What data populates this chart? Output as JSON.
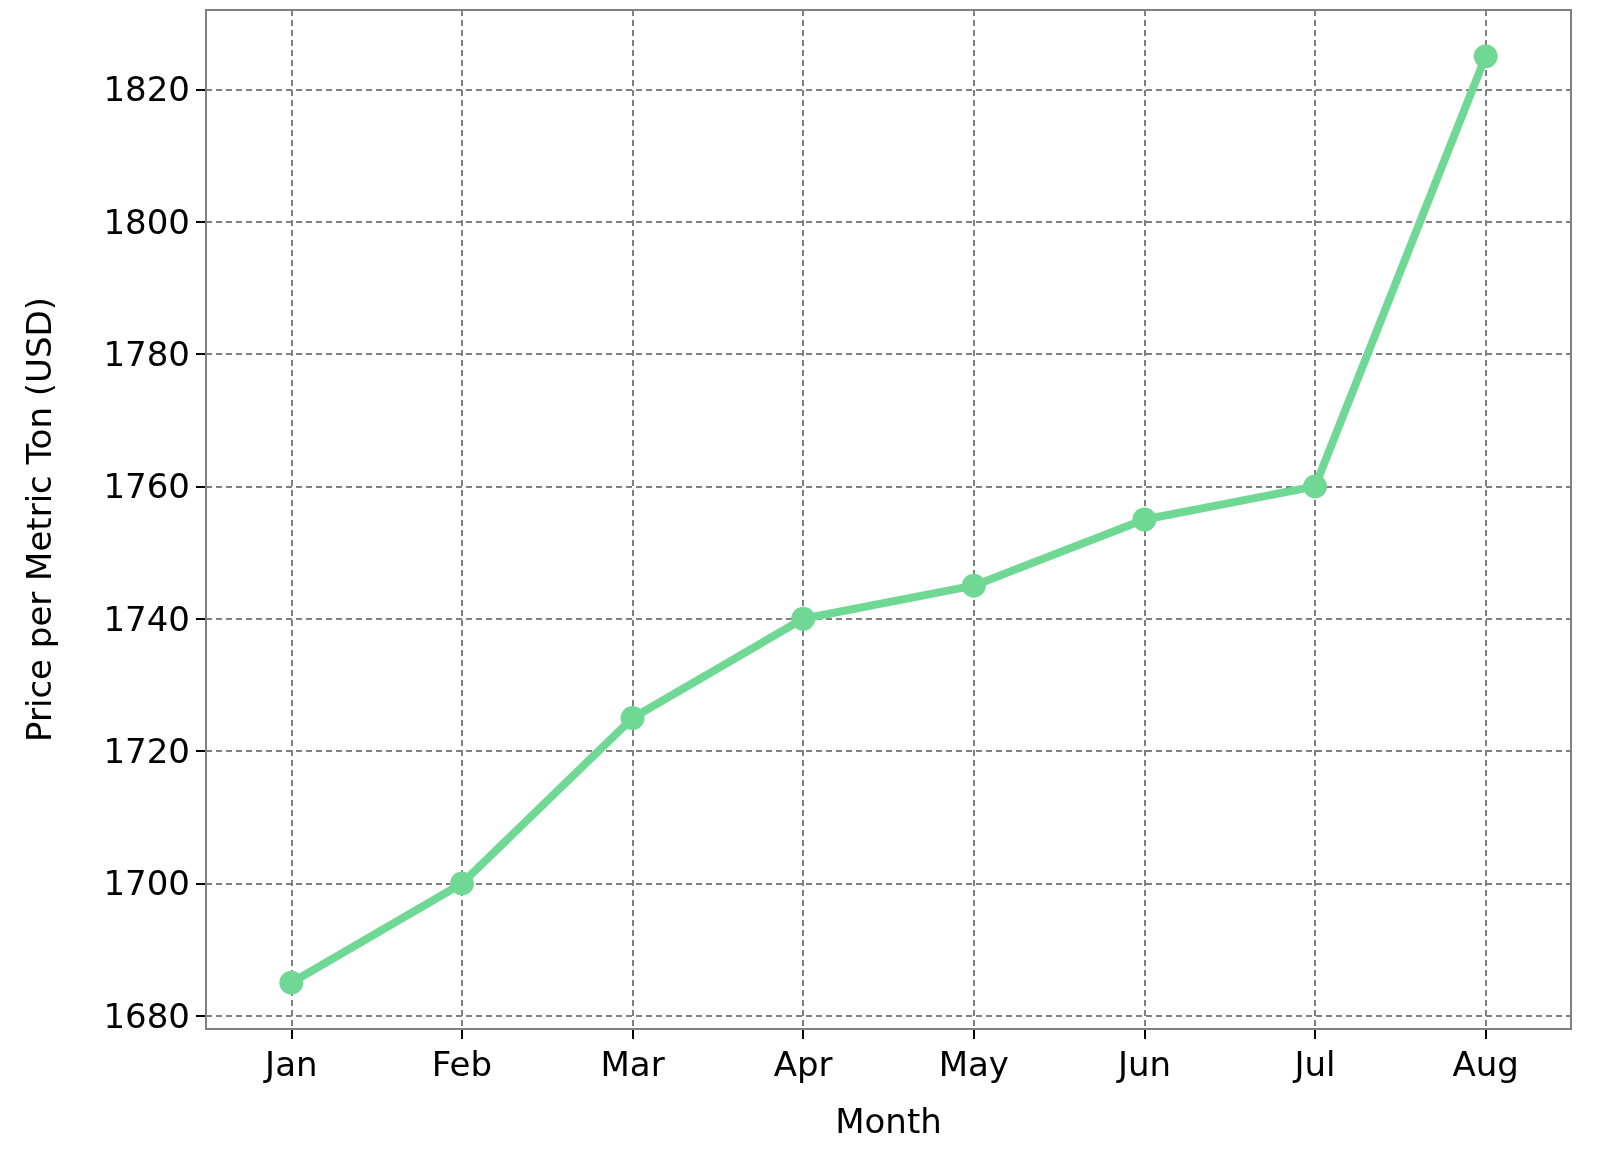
{
  "chart_data": {
    "type": "line",
    "xlabel": "Month",
    "ylabel": "Price per Metric Ton (USD)",
    "categories": [
      "Jan",
      "Feb",
      "Mar",
      "Apr",
      "May",
      "Jun",
      "Jul",
      "Aug"
    ],
    "series": [
      {
        "color": "#6fd894",
        "values": [
          1685,
          1700,
          1725,
          1740,
          1745,
          1755,
          1760,
          1825
        ]
      }
    ],
    "ylim": [
      1678,
      1832
    ],
    "yticks": [
      1680,
      1700,
      1720,
      1740,
      1760,
      1780,
      1800,
      1820
    ],
    "grid": true,
    "marker": "circle",
    "line_style": "solid"
  }
}
